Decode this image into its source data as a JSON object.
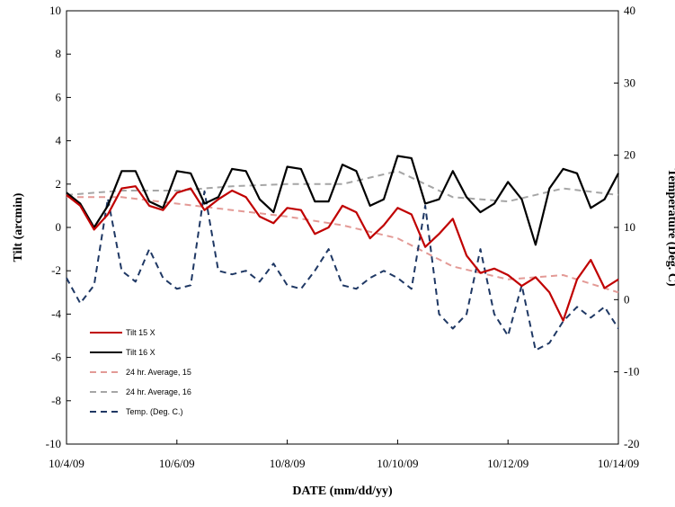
{
  "chart_data": {
    "type": "line",
    "xlabel": "DATE (mm/dd/yy)",
    "ylabel": "Tilt (arcmin)",
    "y2label": "Temperature (Deg. C)",
    "x_ticks": [
      "10/4/09",
      "10/6/09",
      "10/8/09",
      "10/10/09",
      "10/12/09",
      "10/14/09"
    ],
    "x_range": [
      "2009-10-04",
      "2009-10-14"
    ],
    "ylim": [
      -10,
      10
    ],
    "y_ticks": [
      -10,
      -8,
      -6,
      -4,
      -2,
      0,
      2,
      4,
      6,
      8,
      10
    ],
    "y2lim": [
      -20,
      40
    ],
    "y2_ticks": [
      -20,
      -10,
      0,
      10,
      20,
      30,
      40
    ],
    "grid": false,
    "legend_position": "bottom-left",
    "series": [
      {
        "name": "Tilt 15 X",
        "axis": "left",
        "color": "#c00000",
        "style": "solid",
        "x": [
          "2009-10-04 00:00",
          "2009-10-04 06:00",
          "2009-10-04 12:00",
          "2009-10-04 18:00",
          "2009-10-05 00:00",
          "2009-10-05 06:00",
          "2009-10-05 12:00",
          "2009-10-05 18:00",
          "2009-10-06 00:00",
          "2009-10-06 06:00",
          "2009-10-06 12:00",
          "2009-10-06 18:00",
          "2009-10-07 00:00",
          "2009-10-07 06:00",
          "2009-10-07 12:00",
          "2009-10-07 18:00",
          "2009-10-08 00:00",
          "2009-10-08 06:00",
          "2009-10-08 12:00",
          "2009-10-08 18:00",
          "2009-10-09 00:00",
          "2009-10-09 06:00",
          "2009-10-09 12:00",
          "2009-10-09 18:00",
          "2009-10-10 00:00",
          "2009-10-10 06:00",
          "2009-10-10 12:00",
          "2009-10-10 18:00",
          "2009-10-11 00:00",
          "2009-10-11 06:00",
          "2009-10-11 12:00",
          "2009-10-11 18:00",
          "2009-10-12 00:00",
          "2009-10-12 06:00",
          "2009-10-12 12:00",
          "2009-10-12 18:00",
          "2009-10-13 00:00",
          "2009-10-13 06:00",
          "2009-10-13 12:00",
          "2009-10-13 18:00",
          "2009-10-14 00:00"
        ],
        "values": [
          1.5,
          1.0,
          -0.1,
          0.6,
          1.8,
          1.9,
          1.0,
          0.8,
          1.6,
          1.8,
          0.8,
          1.3,
          1.7,
          1.4,
          0.5,
          0.2,
          0.9,
          0.8,
          -0.3,
          0.0,
          1.0,
          0.7,
          -0.5,
          0.1,
          0.9,
          0.6,
          -0.9,
          -0.3,
          0.4,
          -1.3,
          -2.1,
          -1.9,
          -2.2,
          -2.7,
          -2.3,
          -3.0,
          -4.3,
          -2.4,
          -1.5,
          -2.8,
          -2.4
        ]
      },
      {
        "name": "Tilt 16 X",
        "axis": "left",
        "color": "#000000",
        "style": "solid",
        "x": [
          "2009-10-04 00:00",
          "2009-10-04 06:00",
          "2009-10-04 12:00",
          "2009-10-04 18:00",
          "2009-10-05 00:00",
          "2009-10-05 06:00",
          "2009-10-05 12:00",
          "2009-10-05 18:00",
          "2009-10-06 00:00",
          "2009-10-06 06:00",
          "2009-10-06 12:00",
          "2009-10-06 18:00",
          "2009-10-07 00:00",
          "2009-10-07 06:00",
          "2009-10-07 12:00",
          "2009-10-07 18:00",
          "2009-10-08 00:00",
          "2009-10-08 06:00",
          "2009-10-08 12:00",
          "2009-10-08 18:00",
          "2009-10-09 00:00",
          "2009-10-09 06:00",
          "2009-10-09 12:00",
          "2009-10-09 18:00",
          "2009-10-10 00:00",
          "2009-10-10 06:00",
          "2009-10-10 12:00",
          "2009-10-10 18:00",
          "2009-10-11 00:00",
          "2009-10-11 06:00",
          "2009-10-11 12:00",
          "2009-10-11 18:00",
          "2009-10-12 00:00",
          "2009-10-12 06:00",
          "2009-10-12 12:00",
          "2009-10-12 18:00",
          "2009-10-13 00:00",
          "2009-10-13 06:00",
          "2009-10-13 12:00",
          "2009-10-13 18:00",
          "2009-10-14 00:00"
        ],
        "values": [
          1.6,
          1.1,
          0.0,
          1.0,
          2.6,
          2.6,
          1.2,
          0.9,
          2.6,
          2.5,
          1.1,
          1.4,
          2.7,
          2.6,
          1.3,
          0.7,
          2.8,
          2.7,
          1.2,
          1.2,
          2.9,
          2.6,
          1.0,
          1.3,
          3.3,
          3.2,
          1.1,
          1.3,
          2.6,
          1.4,
          0.7,
          1.1,
          2.1,
          1.3,
          -0.8,
          1.8,
          2.7,
          2.5,
          0.9,
          1.3,
          2.5
        ]
      },
      {
        "name": "24 hr. Average, 15",
        "axis": "left",
        "color": "#e39a96",
        "style": "dashed",
        "x": [
          "2009-10-04",
          "2009-10-05",
          "2009-10-06",
          "2009-10-07",
          "2009-10-08",
          "2009-10-09",
          "2009-10-10",
          "2009-10-11",
          "2009-10-12",
          "2009-10-13",
          "2009-10-14"
        ],
        "values": [
          1.4,
          1.4,
          1.1,
          0.8,
          0.5,
          0.1,
          -0.5,
          -1.8,
          -2.4,
          -2.2,
          -3.0
        ]
      },
      {
        "name": "24 hr. Average, 16",
        "axis": "left",
        "color": "#a6a6a6",
        "style": "dashed",
        "x": [
          "2009-10-04",
          "2009-10-05",
          "2009-10-06",
          "2009-10-07",
          "2009-10-08",
          "2009-10-09",
          "2009-10-10",
          "2009-10-11",
          "2009-10-12",
          "2009-10-13",
          "2009-10-14"
        ],
        "values": [
          1.5,
          1.7,
          1.7,
          1.9,
          2.0,
          2.0,
          2.6,
          1.4,
          1.2,
          1.8,
          1.5
        ]
      },
      {
        "name": "Temp. (Deg. C.)",
        "axis": "right",
        "color": "#1f3864",
        "style": "dashed",
        "x": [
          "2009-10-04 00:00",
          "2009-10-04 06:00",
          "2009-10-04 12:00",
          "2009-10-04 18:00",
          "2009-10-05 00:00",
          "2009-10-05 06:00",
          "2009-10-05 12:00",
          "2009-10-05 18:00",
          "2009-10-06 00:00",
          "2009-10-06 06:00",
          "2009-10-06 12:00",
          "2009-10-06 18:00",
          "2009-10-07 00:00",
          "2009-10-07 06:00",
          "2009-10-07 12:00",
          "2009-10-07 18:00",
          "2009-10-08 00:00",
          "2009-10-08 06:00",
          "2009-10-08 12:00",
          "2009-10-08 18:00",
          "2009-10-09 00:00",
          "2009-10-09 06:00",
          "2009-10-09 12:00",
          "2009-10-09 18:00",
          "2009-10-10 00:00",
          "2009-10-10 06:00",
          "2009-10-10 12:00",
          "2009-10-10 18:00",
          "2009-10-11 00:00",
          "2009-10-11 06:00",
          "2009-10-11 12:00",
          "2009-10-11 18:00",
          "2009-10-12 00:00",
          "2009-10-12 06:00",
          "2009-10-12 12:00",
          "2009-10-12 18:00",
          "2009-10-13 00:00",
          "2009-10-13 06:00",
          "2009-10-13 12:00",
          "2009-10-13 18:00",
          "2009-10-14 00:00"
        ],
        "values": [
          3,
          -0.5,
          2,
          14,
          4,
          2.5,
          7,
          3,
          1.5,
          2,
          15,
          4,
          3.5,
          4,
          2.5,
          5,
          2,
          1.5,
          4,
          7,
          2,
          1.5,
          3,
          4,
          3,
          1.5,
          13,
          -2,
          -4,
          -2,
          7,
          -2,
          -5,
          2,
          -7,
          -6,
          -3,
          -1,
          -2.5,
          -1,
          -4
        ]
      }
    ]
  }
}
